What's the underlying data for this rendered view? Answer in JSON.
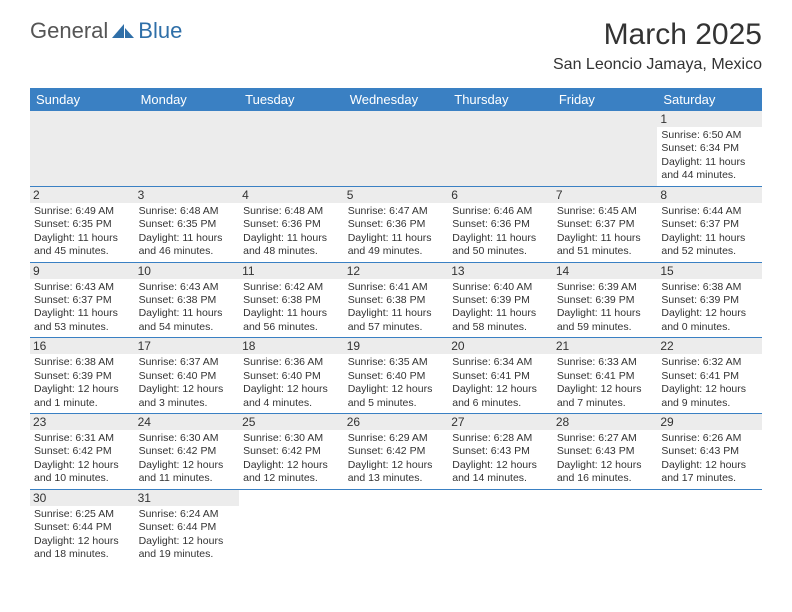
{
  "logo": {
    "text1": "General",
    "text2": "Blue"
  },
  "title": "March 2025",
  "location": "San Leoncio Jamaya, Mexico",
  "colors": {
    "header_bg": "#3a80c3",
    "daynum_bg": "#ececec",
    "border": "#3a80c3",
    "logo_gray": "#555",
    "logo_blue": "#2f6fa8"
  },
  "dayHeaders": [
    "Sunday",
    "Monday",
    "Tuesday",
    "Wednesday",
    "Thursday",
    "Friday",
    "Saturday"
  ],
  "weeks": [
    [
      null,
      null,
      null,
      null,
      null,
      null,
      {
        "n": "1",
        "sr": "Sunrise: 6:50 AM",
        "ss": "Sunset: 6:34 PM",
        "dl": "Daylight: 11 hours and 44 minutes."
      }
    ],
    [
      {
        "n": "2",
        "sr": "Sunrise: 6:49 AM",
        "ss": "Sunset: 6:35 PM",
        "dl": "Daylight: 11 hours and 45 minutes."
      },
      {
        "n": "3",
        "sr": "Sunrise: 6:48 AM",
        "ss": "Sunset: 6:35 PM",
        "dl": "Daylight: 11 hours and 46 minutes."
      },
      {
        "n": "4",
        "sr": "Sunrise: 6:48 AM",
        "ss": "Sunset: 6:36 PM",
        "dl": "Daylight: 11 hours and 48 minutes."
      },
      {
        "n": "5",
        "sr": "Sunrise: 6:47 AM",
        "ss": "Sunset: 6:36 PM",
        "dl": "Daylight: 11 hours and 49 minutes."
      },
      {
        "n": "6",
        "sr": "Sunrise: 6:46 AM",
        "ss": "Sunset: 6:36 PM",
        "dl": "Daylight: 11 hours and 50 minutes."
      },
      {
        "n": "7",
        "sr": "Sunrise: 6:45 AM",
        "ss": "Sunset: 6:37 PM",
        "dl": "Daylight: 11 hours and 51 minutes."
      },
      {
        "n": "8",
        "sr": "Sunrise: 6:44 AM",
        "ss": "Sunset: 6:37 PM",
        "dl": "Daylight: 11 hours and 52 minutes."
      }
    ],
    [
      {
        "n": "9",
        "sr": "Sunrise: 6:43 AM",
        "ss": "Sunset: 6:37 PM",
        "dl": "Daylight: 11 hours and 53 minutes."
      },
      {
        "n": "10",
        "sr": "Sunrise: 6:43 AM",
        "ss": "Sunset: 6:38 PM",
        "dl": "Daylight: 11 hours and 54 minutes."
      },
      {
        "n": "11",
        "sr": "Sunrise: 6:42 AM",
        "ss": "Sunset: 6:38 PM",
        "dl": "Daylight: 11 hours and 56 minutes."
      },
      {
        "n": "12",
        "sr": "Sunrise: 6:41 AM",
        "ss": "Sunset: 6:38 PM",
        "dl": "Daylight: 11 hours and 57 minutes."
      },
      {
        "n": "13",
        "sr": "Sunrise: 6:40 AM",
        "ss": "Sunset: 6:39 PM",
        "dl": "Daylight: 11 hours and 58 minutes."
      },
      {
        "n": "14",
        "sr": "Sunrise: 6:39 AM",
        "ss": "Sunset: 6:39 PM",
        "dl": "Daylight: 11 hours and 59 minutes."
      },
      {
        "n": "15",
        "sr": "Sunrise: 6:38 AM",
        "ss": "Sunset: 6:39 PM",
        "dl": "Daylight: 12 hours and 0 minutes."
      }
    ],
    [
      {
        "n": "16",
        "sr": "Sunrise: 6:38 AM",
        "ss": "Sunset: 6:39 PM",
        "dl": "Daylight: 12 hours and 1 minute."
      },
      {
        "n": "17",
        "sr": "Sunrise: 6:37 AM",
        "ss": "Sunset: 6:40 PM",
        "dl": "Daylight: 12 hours and 3 minutes."
      },
      {
        "n": "18",
        "sr": "Sunrise: 6:36 AM",
        "ss": "Sunset: 6:40 PM",
        "dl": "Daylight: 12 hours and 4 minutes."
      },
      {
        "n": "19",
        "sr": "Sunrise: 6:35 AM",
        "ss": "Sunset: 6:40 PM",
        "dl": "Daylight: 12 hours and 5 minutes."
      },
      {
        "n": "20",
        "sr": "Sunrise: 6:34 AM",
        "ss": "Sunset: 6:41 PM",
        "dl": "Daylight: 12 hours and 6 minutes."
      },
      {
        "n": "21",
        "sr": "Sunrise: 6:33 AM",
        "ss": "Sunset: 6:41 PM",
        "dl": "Daylight: 12 hours and 7 minutes."
      },
      {
        "n": "22",
        "sr": "Sunrise: 6:32 AM",
        "ss": "Sunset: 6:41 PM",
        "dl": "Daylight: 12 hours and 9 minutes."
      }
    ],
    [
      {
        "n": "23",
        "sr": "Sunrise: 6:31 AM",
        "ss": "Sunset: 6:42 PM",
        "dl": "Daylight: 12 hours and 10 minutes."
      },
      {
        "n": "24",
        "sr": "Sunrise: 6:30 AM",
        "ss": "Sunset: 6:42 PM",
        "dl": "Daylight: 12 hours and 11 minutes."
      },
      {
        "n": "25",
        "sr": "Sunrise: 6:30 AM",
        "ss": "Sunset: 6:42 PM",
        "dl": "Daylight: 12 hours and 12 minutes."
      },
      {
        "n": "26",
        "sr": "Sunrise: 6:29 AM",
        "ss": "Sunset: 6:42 PM",
        "dl": "Daylight: 12 hours and 13 minutes."
      },
      {
        "n": "27",
        "sr": "Sunrise: 6:28 AM",
        "ss": "Sunset: 6:43 PM",
        "dl": "Daylight: 12 hours and 14 minutes."
      },
      {
        "n": "28",
        "sr": "Sunrise: 6:27 AM",
        "ss": "Sunset: 6:43 PM",
        "dl": "Daylight: 12 hours and 16 minutes."
      },
      {
        "n": "29",
        "sr": "Sunrise: 6:26 AM",
        "ss": "Sunset: 6:43 PM",
        "dl": "Daylight: 12 hours and 17 minutes."
      }
    ],
    [
      {
        "n": "30",
        "sr": "Sunrise: 6:25 AM",
        "ss": "Sunset: 6:44 PM",
        "dl": "Daylight: 12 hours and 18 minutes."
      },
      {
        "n": "31",
        "sr": "Sunrise: 6:24 AM",
        "ss": "Sunset: 6:44 PM",
        "dl": "Daylight: 12 hours and 19 minutes."
      },
      null,
      null,
      null,
      null,
      null
    ]
  ]
}
